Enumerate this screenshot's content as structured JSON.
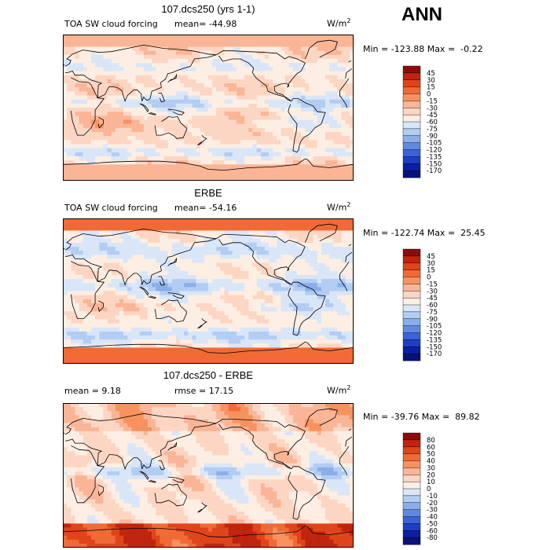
{
  "page": {
    "season": "ANN",
    "units": "W/m",
    "units_exp": "2"
  },
  "chart_data": [
    {
      "type": "heatmap",
      "title": "107.dcs250 (yrs 1-1)",
      "variable": "TOA SW cloud forcing",
      "mean_label": "mean=",
      "mean": "-44.98",
      "min_label": "Min =",
      "min": "-123.88",
      "max_label": "Max =",
      "max": "-0.22",
      "colorbar_levels": [
        "45",
        "30",
        "15",
        "0",
        "-15",
        "-30",
        "-45",
        "-60",
        "-75",
        "-90",
        "-105",
        "-120",
        "-135",
        "-150",
        "-170"
      ],
      "colorbar_colors": [
        "#8b0c0c",
        "#c0240d",
        "#e0441a",
        "#f06a36",
        "#f7925f",
        "#fab596",
        "#fcd6c3",
        "#fdeee3",
        "#d9e6f8",
        "#b3cdf2",
        "#8aaeea",
        "#6288e2",
        "#3b62d8",
        "#1e3ec6",
        "#0a1fa6",
        "#071278"
      ],
      "field": {
        "base": -40,
        "pattern": "model"
      }
    },
    {
      "type": "heatmap",
      "title": "ERBE",
      "variable": "TOA SW cloud forcing",
      "mean_label": "mean=",
      "mean": "-54.16",
      "min_label": "Min =",
      "min": "-122.74",
      "max_label": "Max =",
      "max": "25.45",
      "colorbar_levels": [
        "45",
        "30",
        "15",
        "0",
        "-15",
        "-30",
        "-45",
        "-60",
        "-75",
        "-90",
        "-105",
        "-120",
        "-135",
        "-150",
        "-170"
      ],
      "colorbar_colors": [
        "#8b0c0c",
        "#c0240d",
        "#e0441a",
        "#f06a36",
        "#f7925f",
        "#fab596",
        "#fcd6c3",
        "#fdeee3",
        "#d9e6f8",
        "#b3cdf2",
        "#8aaeea",
        "#6288e2",
        "#3b62d8",
        "#1e3ec6",
        "#0a1fa6",
        "#071278"
      ],
      "field": {
        "base": -50,
        "pattern": "obs"
      }
    },
    {
      "type": "heatmap",
      "title": "107.dcs250 - ERBE",
      "variable": "",
      "mean_label": "mean =",
      "mean": "9.18",
      "rmse_label": "rmse =",
      "rmse": "17.15",
      "min_label": "Min =",
      "min": "-39.76",
      "max_label": "Max =",
      "max": "89.82",
      "colorbar_levels": [
        "80",
        "60",
        "50",
        "40",
        "30",
        "20",
        "10",
        "0",
        "-10",
        "-20",
        "-30",
        "-40",
        "-50",
        "-60",
        "-80"
      ],
      "colorbar_colors": [
        "#8b0c0c",
        "#c0240d",
        "#e0441a",
        "#f06a36",
        "#f7925f",
        "#fab596",
        "#fcd6c3",
        "#fdeee3",
        "#d9e6f8",
        "#b3cdf2",
        "#8aaeea",
        "#6288e2",
        "#3b62d8",
        "#1e3ec6",
        "#0a1fa6",
        "#071278"
      ],
      "field": {
        "base": 10,
        "pattern": "diff"
      }
    }
  ]
}
